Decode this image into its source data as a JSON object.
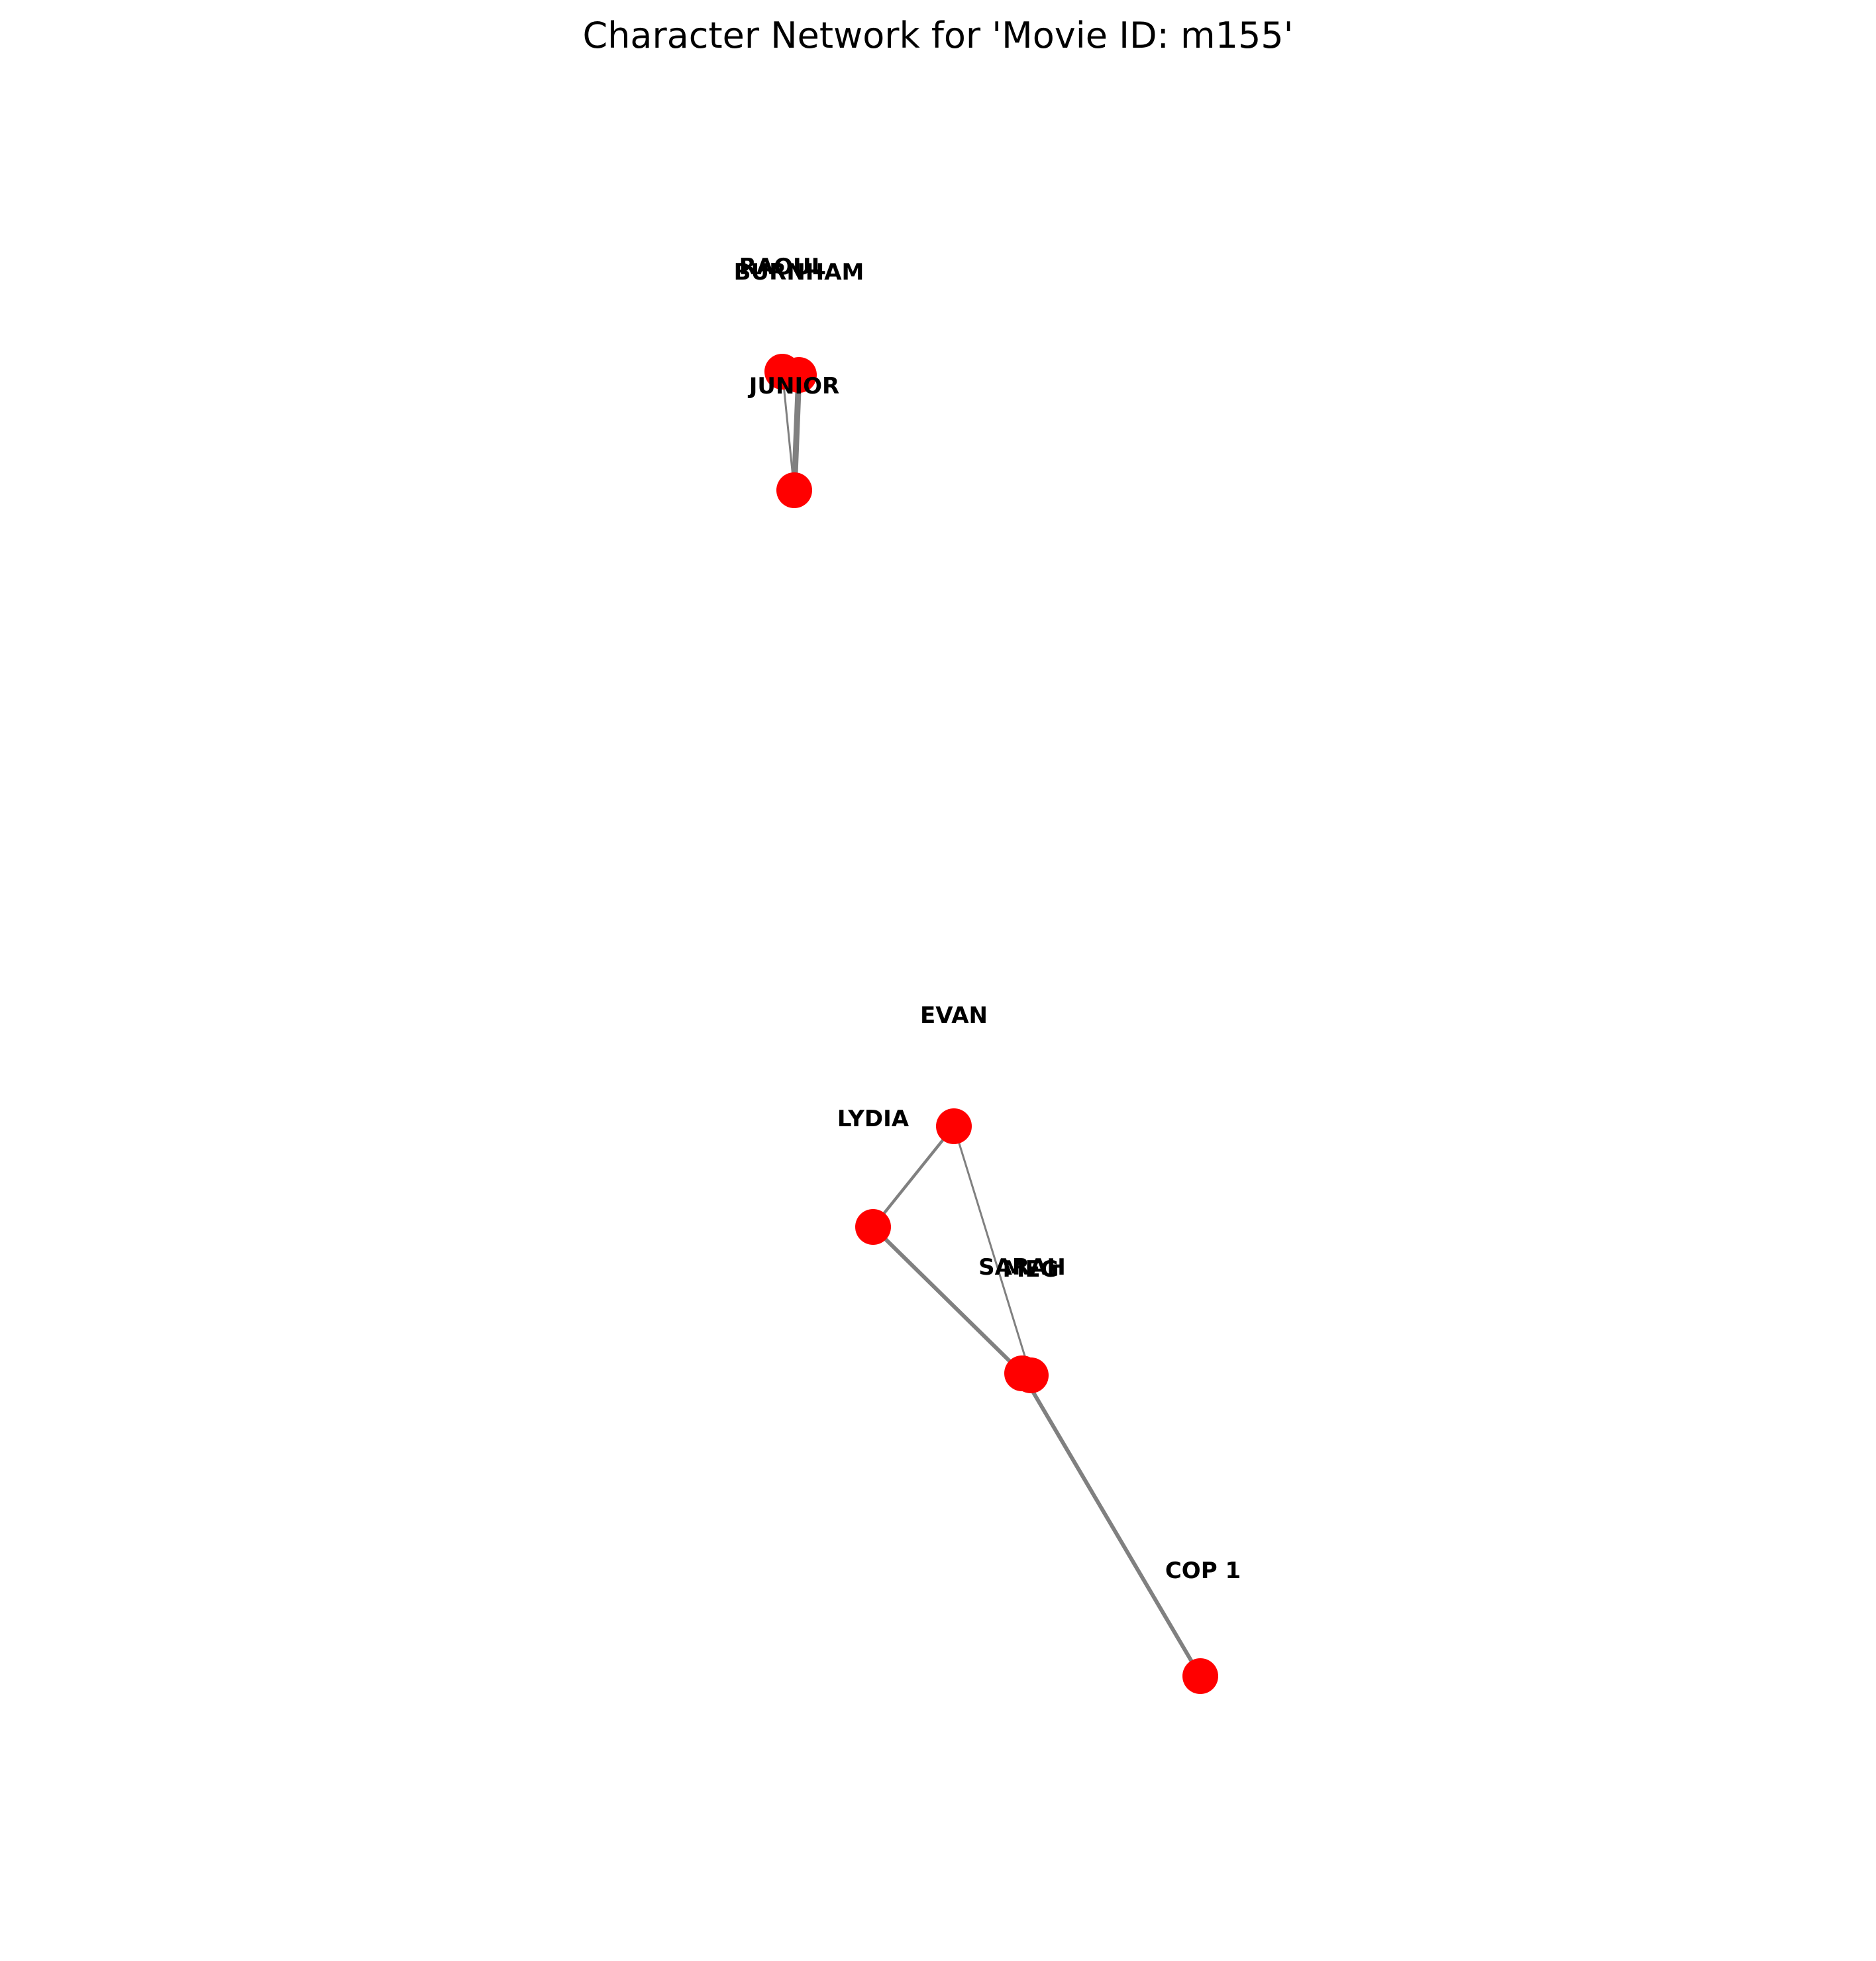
{
  "title": "Character Network for 'Movie ID: m155'",
  "colors": {
    "node": "#ff0000",
    "edge": "#808080",
    "label": "#000000",
    "background": "#ffffff"
  },
  "chart_data": {
    "type": "network",
    "nodes": [
      {
        "id": "RAOUL"
      },
      {
        "id": "BURNHAM"
      },
      {
        "id": "JUNIOR"
      },
      {
        "id": "EVAN"
      },
      {
        "id": "LYDIA"
      },
      {
        "id": "SARAH"
      },
      {
        "id": "MEG"
      },
      {
        "id": "COP 1"
      }
    ],
    "edges": [
      {
        "source": "RAOUL",
        "target": "JUNIOR",
        "weight": 1
      },
      {
        "source": "BURNHAM",
        "target": "JUNIOR",
        "weight": 3
      },
      {
        "source": "RAOUL",
        "target": "BURNHAM",
        "weight": 1
      },
      {
        "source": "EVAN",
        "target": "LYDIA",
        "weight": 1.5
      },
      {
        "source": "EVAN",
        "target": "MEG",
        "weight": 1
      },
      {
        "source": "LYDIA",
        "target": "SARAH",
        "weight": 2
      },
      {
        "source": "SARAH",
        "target": "MEG",
        "weight": 1
      },
      {
        "source": "SARAH",
        "target": "COP 1",
        "weight": 2
      }
    ]
  }
}
